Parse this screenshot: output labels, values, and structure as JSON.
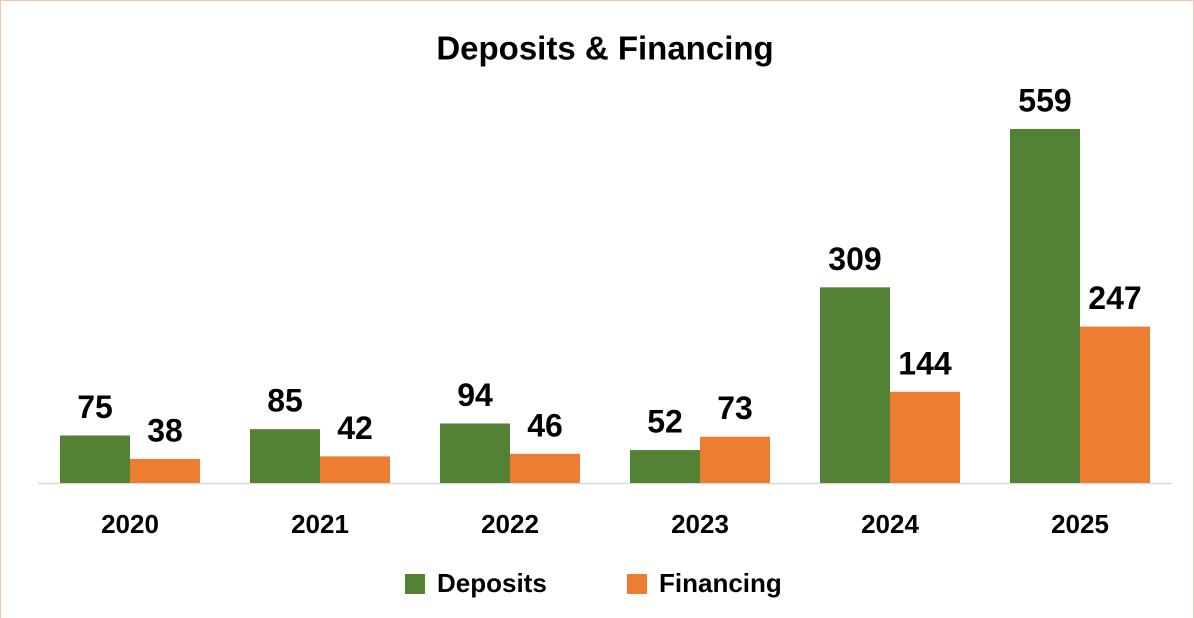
{
  "chart_data": {
    "type": "bar",
    "title": "Deposits & Financing",
    "categories": [
      "2020",
      "2021",
      "2022",
      "2023",
      "2024",
      "2025"
    ],
    "series": [
      {
        "name": "Deposits",
        "color": "#548235",
        "values": [
          75,
          85,
          94,
          52,
          309,
          559
        ]
      },
      {
        "name": "Financing",
        "color": "#ed7d31",
        "values": [
          38,
          42,
          46,
          73,
          144,
          247
        ]
      }
    ]
  }
}
